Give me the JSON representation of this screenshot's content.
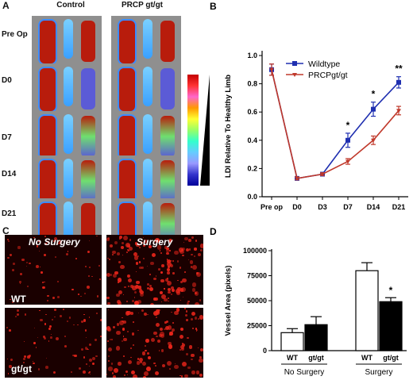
{
  "panels": {
    "a": {
      "letter": "A",
      "col_headers": [
        "Control",
        "PRCP gt/gt"
      ],
      "row_labels": [
        "Pre Op",
        "D0",
        "D7",
        "D14",
        "D21"
      ]
    },
    "c": {
      "letter": "C",
      "col_headers": [
        "No Surgery",
        "Surgery"
      ],
      "row_labels": [
        "WT",
        "gt/gt"
      ]
    }
  },
  "chart_data": [
    {
      "panel_letter": "B",
      "type": "line",
      "ylabel": "LDI Relative To Healthy Limb",
      "categories": [
        "Pre op",
        "D0",
        "D3",
        "D7",
        "D14",
        "D21"
      ],
      "ylim": [
        0.0,
        1.0
      ],
      "yticks": [
        "0.0",
        "0.2",
        "0.4",
        "0.6",
        "0.8",
        "1.0"
      ],
      "series": [
        {
          "name": "Wildtype",
          "color": "#1f2fb0",
          "marker": "square",
          "values": [
            0.9,
            0.13,
            0.16,
            0.4,
            0.62,
            0.81
          ],
          "errors": [
            0.04,
            0.01,
            0.01,
            0.05,
            0.05,
            0.04
          ]
        },
        {
          "name": "PRCPgt/gt",
          "color": "#c0392b",
          "marker": "triangle",
          "values": [
            0.9,
            0.13,
            0.16,
            0.25,
            0.4,
            0.61
          ],
          "errors": [
            0.04,
            0.01,
            0.01,
            0.02,
            0.03,
            0.03
          ]
        }
      ],
      "significance": [
        {
          "category": "D7",
          "text": "*"
        },
        {
          "category": "D14",
          "text": "*"
        },
        {
          "category": "D21",
          "text": "**"
        }
      ],
      "legend": "top-right"
    },
    {
      "panel_letter": "D",
      "type": "bar",
      "ylabel": "Vessel Area (pixels)",
      "ylim": [
        0,
        100000
      ],
      "yticks": [
        "0",
        "25000",
        "50000",
        "75000",
        "100000"
      ],
      "groups": [
        "No Surgery",
        "Surgery"
      ],
      "bars": [
        {
          "group": "No Surgery",
          "label": "WT",
          "value": 18000,
          "error": 4000,
          "fill": "#ffffff"
        },
        {
          "group": "No Surgery",
          "label": "gt/gt",
          "value": 26000,
          "error": 8000,
          "fill": "#000000"
        },
        {
          "group": "Surgery",
          "label": "WT",
          "value": 80000,
          "error": 8000,
          "fill": "#ffffff"
        },
        {
          "group": "Surgery",
          "label": "gt/gt",
          "value": 49000,
          "error": 4000,
          "fill": "#000000"
        }
      ],
      "significance": [
        {
          "group": "Surgery",
          "label": "gt/gt",
          "text": "*"
        }
      ]
    }
  ]
}
